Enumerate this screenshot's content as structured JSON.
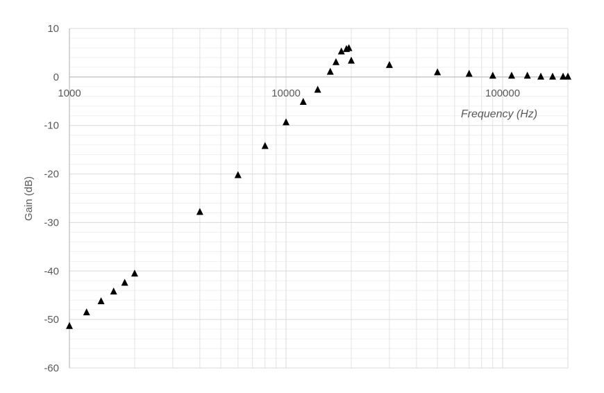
{
  "chart_data": {
    "type": "scatter",
    "title": "",
    "xlabel": "Frequency (Hz)",
    "ylabel": "Gain (dB)",
    "x_scale": "log",
    "xlim": [
      1000,
      200000
    ],
    "ylim": [
      -60,
      10
    ],
    "grid": true,
    "legend": "none",
    "marker": "triangle",
    "marker_color": "#000000",
    "x_tick_labels": [
      "1000",
      "10000",
      "100000"
    ],
    "y_tick_labels": [
      "10",
      "0",
      "-10",
      "-20",
      "-30",
      "-40",
      "-50",
      "-60"
    ],
    "series": [
      {
        "x": [
          1000,
          1200,
          1400,
          1600,
          1800,
          2000,
          4000,
          6000,
          8000,
          10000,
          12000,
          14000,
          16000,
          17000,
          18000,
          19000,
          19500,
          20000,
          30000,
          50000,
          70000,
          90000,
          110000,
          130000,
          150000,
          170000,
          190000,
          200000
        ],
        "y": [
          -51.3,
          -48.5,
          -46.2,
          -44.2,
          -42.4,
          -40.5,
          -27.8,
          -20.2,
          -14.2,
          -9.3,
          -5.1,
          -2.6,
          1.1,
          3.1,
          5.3,
          5.8,
          6.0,
          3.4,
          2.5,
          1.0,
          0.7,
          0.3,
          0.3,
          0.3,
          0.1,
          0.1,
          0.1,
          0.1
        ]
      }
    ]
  }
}
